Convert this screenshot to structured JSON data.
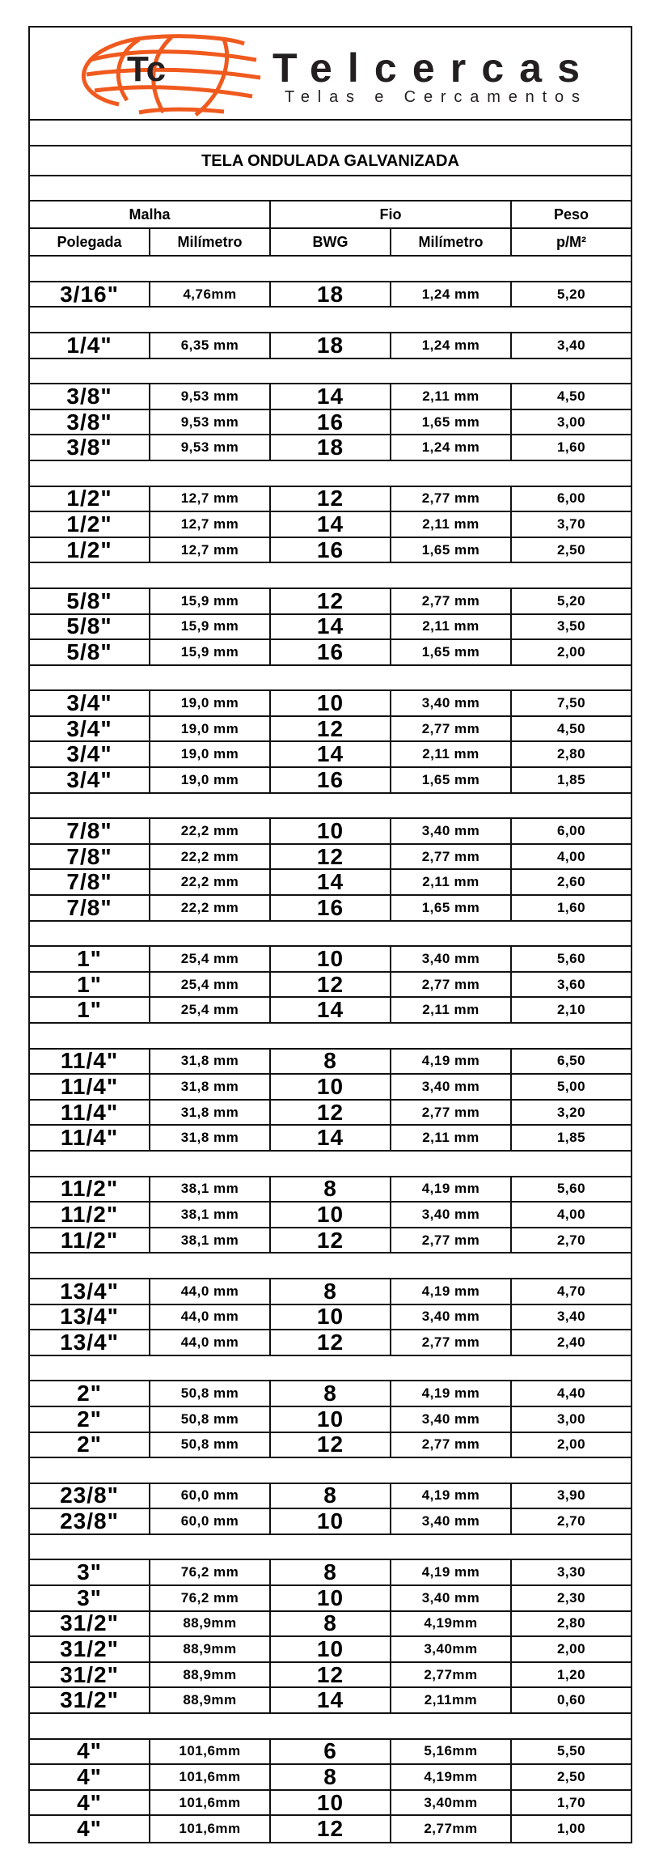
{
  "logo": {
    "monogram": "Tc",
    "brand": "Telcercas",
    "tagline": "Telas e Cercamentos",
    "accent": "#f05a1e"
  },
  "title": "TELA ONDULADA GALVANIZADA",
  "header": {
    "malha": "Malha",
    "fio": "Fio",
    "peso": "Peso",
    "polegada": "Polegada",
    "milimetro_malha": "Milímetro",
    "bwg": "BWG",
    "milimetro_fio": "Milímetro",
    "pm2": "p/M²"
  },
  "groups": [
    [
      [
        "3/16\"",
        "4,76mm",
        "18",
        "1,24 mm",
        "5,20"
      ]
    ],
    [
      [
        "1/4\"",
        "6,35 mm",
        "18",
        "1,24 mm",
        "3,40"
      ]
    ],
    [
      [
        "3/8\"",
        "9,53 mm",
        "14",
        "2,11 mm",
        "4,50"
      ],
      [
        "3/8\"",
        "9,53 mm",
        "16",
        "1,65 mm",
        "3,00"
      ],
      [
        "3/8\"",
        "9,53 mm",
        "18",
        "1,24 mm",
        "1,60"
      ]
    ],
    [
      [
        "1/2\"",
        "12,7 mm",
        "12",
        "2,77 mm",
        "6,00"
      ],
      [
        "1/2\"",
        "12,7 mm",
        "14",
        "2,11 mm",
        "3,70"
      ],
      [
        "1/2\"",
        "12,7 mm",
        "16",
        "1,65 mm",
        "2,50"
      ]
    ],
    [
      [
        "5/8\"",
        "15,9 mm",
        "12",
        "2,77 mm",
        "5,20"
      ],
      [
        "5/8\"",
        "15,9 mm",
        "14",
        "2,11 mm",
        "3,50"
      ],
      [
        "5/8\"",
        "15,9 mm",
        "16",
        "1,65 mm",
        "2,00"
      ]
    ],
    [
      [
        "3/4\"",
        "19,0 mm",
        "10",
        "3,40 mm",
        "7,50"
      ],
      [
        "3/4\"",
        "19,0 mm",
        "12",
        "2,77 mm",
        "4,50"
      ],
      [
        "3/4\"",
        "19,0 mm",
        "14",
        "2,11 mm",
        "2,80"
      ],
      [
        "3/4\"",
        "19,0 mm",
        "16",
        "1,65 mm",
        "1,85"
      ]
    ],
    [
      [
        "7/8\"",
        "22,2 mm",
        "10",
        "3,40 mm",
        "6,00"
      ],
      [
        "7/8\"",
        "22,2 mm",
        "12",
        "2,77 mm",
        "4,00"
      ],
      [
        "7/8\"",
        "22,2 mm",
        "14",
        "2,11 mm",
        "2,60"
      ],
      [
        "7/8\"",
        "22,2 mm",
        "16",
        "1,65 mm",
        "1,60"
      ]
    ],
    [
      [
        "1\"",
        "25,4 mm",
        "10",
        "3,40 mm",
        "5,60"
      ],
      [
        "1\"",
        "25,4 mm",
        "12",
        "2,77 mm",
        "3,60"
      ],
      [
        "1\"",
        "25,4 mm",
        "14",
        "2,11 mm",
        "2,10"
      ]
    ],
    [
      [
        "11/4\"",
        "31,8 mm",
        "8",
        "4,19 mm",
        "6,50"
      ],
      [
        "11/4\"",
        "31,8 mm",
        "10",
        "3,40 mm",
        "5,00"
      ],
      [
        "11/4\"",
        "31,8 mm",
        "12",
        "2,77 mm",
        "3,20"
      ],
      [
        "11/4\"",
        "31,8 mm",
        "14",
        "2,11 mm",
        "1,85"
      ]
    ],
    [
      [
        "11/2\"",
        "38,1 mm",
        "8",
        "4,19 mm",
        "5,60"
      ],
      [
        "11/2\"",
        "38,1 mm",
        "10",
        "3,40 mm",
        "4,00"
      ],
      [
        "11/2\"",
        "38,1 mm",
        "12",
        "2,77 mm",
        "2,70"
      ]
    ],
    [
      [
        "13/4\"",
        "44,0 mm",
        "8",
        "4,19 mm",
        "4,70"
      ],
      [
        "13/4\"",
        "44,0 mm",
        "10",
        "3,40 mm",
        "3,40"
      ],
      [
        "13/4\"",
        "44,0 mm",
        "12",
        "2,77 mm",
        "2,40"
      ]
    ],
    [
      [
        "2\"",
        "50,8 mm",
        "8",
        "4,19 mm",
        "4,40"
      ],
      [
        "2\"",
        "50,8 mm",
        "10",
        "3,40 mm",
        "3,00"
      ],
      [
        "2\"",
        "50,8 mm",
        "12",
        "2,77 mm",
        "2,00"
      ]
    ],
    [
      [
        "23/8\"",
        "60,0 mm",
        "8",
        "4,19 mm",
        "3,90"
      ],
      [
        "23/8\"",
        "60,0 mm",
        "10",
        "3,40 mm",
        "2,70"
      ]
    ],
    [
      [
        "3\"",
        "76,2 mm",
        "8",
        "4,19 mm",
        "3,30"
      ],
      [
        "3\"",
        "76,2 mm",
        "10",
        "3,40 mm",
        "2,30"
      ],
      [
        "31/2\"",
        "88,9mm",
        "8",
        "4,19mm",
        "2,80"
      ],
      [
        "31/2\"",
        "88,9mm",
        "10",
        "3,40mm",
        "2,00"
      ],
      [
        "31/2\"",
        "88,9mm",
        "12",
        "2,77mm",
        "1,20"
      ],
      [
        "31/2\"",
        "88,9mm",
        "14",
        "2,11mm",
        "0,60"
      ]
    ],
    [
      [
        "4\"",
        "101,6mm",
        "6",
        "5,16mm",
        "5,50"
      ],
      [
        "4\"",
        "101,6mm",
        "8",
        "4,19mm",
        "2,50"
      ],
      [
        "4\"",
        "101,6mm",
        "10",
        "3,40mm",
        "1,70"
      ],
      [
        "4\"",
        "101,6mm",
        "12",
        "2,77mm",
        "1,00"
      ]
    ]
  ]
}
